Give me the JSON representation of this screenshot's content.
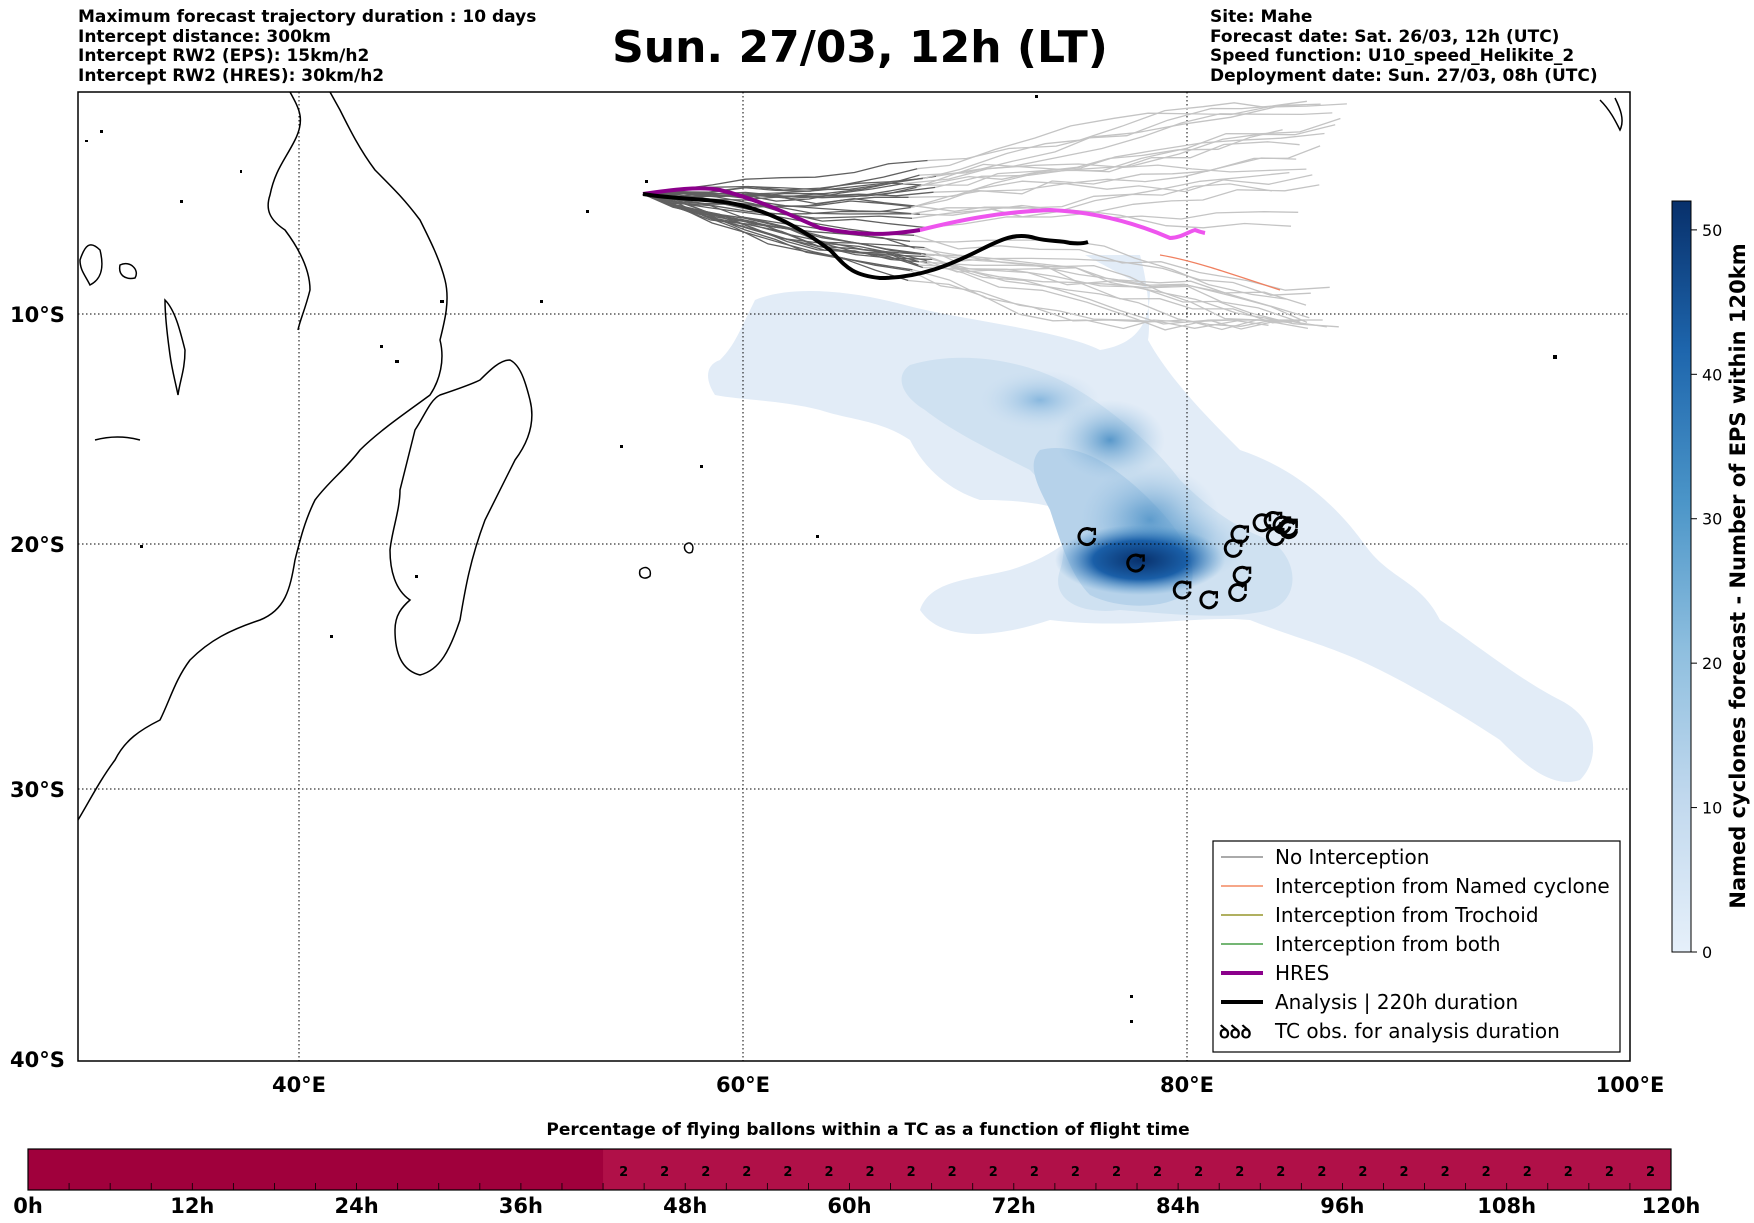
{
  "header_left": [
    "Maximum forecast trajectory duration : 10 days",
    "Intercept distance: 300km",
    "Intercept RW2 (EPS):  15km/h2",
    "Intercept RW2 (HRES): 30km/h2"
  ],
  "header_right": [
    "Site: Mahe",
    "Forecast date: Sat. 26/03, 12h (UTC)",
    "Speed function: U10_speed_Helikite_2",
    "Deployment date: Sun. 27/03, 08h (UTC)"
  ],
  "title": "Sun. 27/03, 12h (LT)",
  "map": {
    "lat_labels": [
      "10°S",
      "20°S",
      "30°S",
      "40°S"
    ],
    "lon_labels": [
      "40°E",
      "60°E",
      "80°E",
      "100°E"
    ],
    "lon_range": [
      30,
      100
    ],
    "lat_range": [
      -40,
      0.5
    ],
    "grid": true
  },
  "legend": {
    "placement": "bottom-right",
    "items": [
      {
        "label": "No Interception",
        "color": "#777777"
      },
      {
        "label": "Interception from Named cyclone",
        "color": "#f07040"
      },
      {
        "label": "Interception from Trochoid",
        "color": "#808000"
      },
      {
        "label": "Interception from both",
        "color": "#228b22"
      },
      {
        "label": "HRES",
        "color": "#8b008b"
      },
      {
        "label": "Analysis | 220h duration",
        "color": "#000000"
      },
      {
        "label": "TC obs. for analysis duration",
        "color": "#000000",
        "symbol": "ꝺꝺꝺ"
      }
    ]
  },
  "colorbar": {
    "label": "Named cyclones forecast - Number of EPS within 120km",
    "ticks": [
      "0",
      "10",
      "20",
      "30",
      "40",
      "50"
    ],
    "range": [
      0,
      52
    ],
    "color_low": "#e6f0fa",
    "color_high": "#08306b"
  },
  "bottom_bar": {
    "title": "Percentage of flying ballons within a TC as a function of flight time",
    "tick_labels": [
      "0h",
      "12h",
      "24h",
      "36h",
      "48h",
      "60h",
      "72h",
      "84h",
      "96h",
      "108h",
      "120h"
    ],
    "cell_value": "2",
    "cells_with_value": 26,
    "color_empty": "#a0003c",
    "color_filled": "#b01048"
  },
  "chart_data": {
    "type": "trajectory-map",
    "tc_observations_lonlat": [
      [
        75.5,
        -19.7
      ],
      [
        77.7,
        -20.8
      ],
      [
        79.8,
        -21.9
      ],
      [
        81.0,
        -22.3
      ],
      [
        82.3,
        -22.0
      ],
      [
        82.5,
        -21.3
      ],
      [
        82.1,
        -20.2
      ],
      [
        82.4,
        -19.6
      ],
      [
        83.4,
        -19.1
      ],
      [
        83.9,
        -19.0
      ],
      [
        84.3,
        -19.2
      ],
      [
        84.6,
        -19.4
      ],
      [
        84.0,
        -19.7
      ],
      [
        84.6,
        -19.3
      ]
    ]
  }
}
